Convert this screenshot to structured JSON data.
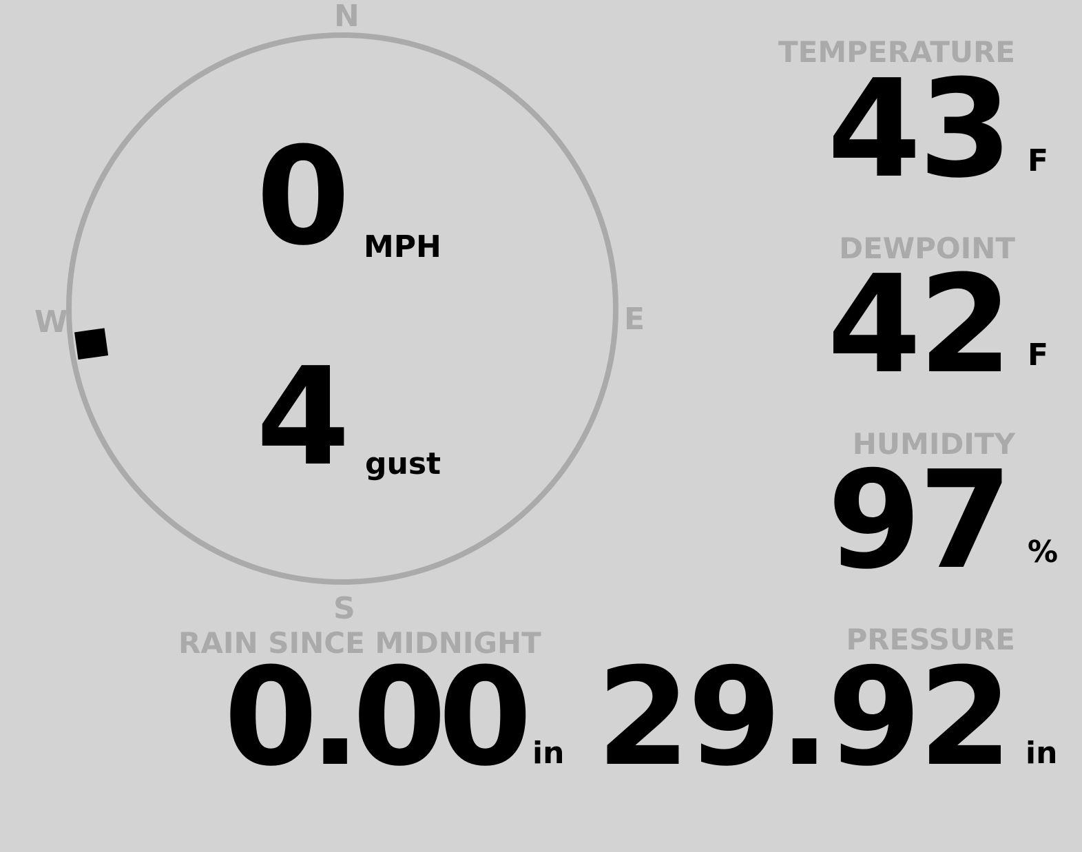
{
  "wind": {
    "speed": "0",
    "speed_unit": "MPH",
    "gust": "4",
    "gust_unit": "gust",
    "direction_degrees": 262,
    "cardinals": {
      "n": "N",
      "e": "E",
      "s": "S",
      "w": "W"
    }
  },
  "temperature": {
    "label": "TEMPERATURE",
    "value": "43",
    "unit": "F"
  },
  "dewpoint": {
    "label": "DEWPOINT",
    "value": "42",
    "unit": "F"
  },
  "humidity": {
    "label": "HUMIDITY",
    "value": "97",
    "unit": "%"
  },
  "rain": {
    "label": "RAIN SINCE MIDNIGHT",
    "value": "0.00",
    "unit": "in"
  },
  "pressure": {
    "label": "PRESSURE",
    "value": "29.92",
    "unit": "in"
  },
  "colors": {
    "background": "#d3d3d3",
    "label": "#aaaaaa",
    "value": "#000000",
    "ring": "#aaaaaa"
  }
}
